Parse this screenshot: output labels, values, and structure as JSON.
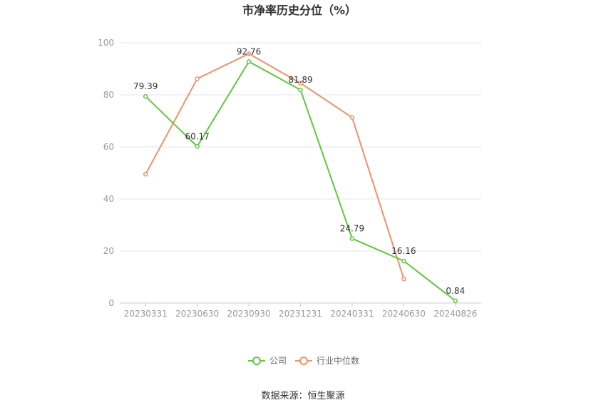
{
  "chart_data": {
    "type": "line",
    "title": "市净率历史分位（%）",
    "categories": [
      "20230331",
      "20230630",
      "20230930",
      "20231231",
      "20240331",
      "20240630",
      "20240826"
    ],
    "ylim": [
      0,
      100
    ],
    "yticks": [
      0,
      20,
      40,
      60,
      80,
      100
    ],
    "grid": true,
    "legend_position": "bottom",
    "series": [
      {
        "name": "公司",
        "color": "#5fc93a",
        "values": [
          79.39,
          60.17,
          92.76,
          81.89,
          24.79,
          16.16,
          0.84
        ],
        "labels": [
          "79.39",
          "60.17",
          "92.76",
          "81.89",
          "24.79",
          "16.16",
          "0.84"
        ]
      },
      {
        "name": "行业中位数",
        "color": "#f0916a",
        "values": [
          49.5,
          86.2,
          95.8,
          84.5,
          71.3,
          9.3,
          null
        ]
      }
    ],
    "source": "数据来源：恒生聚源"
  }
}
